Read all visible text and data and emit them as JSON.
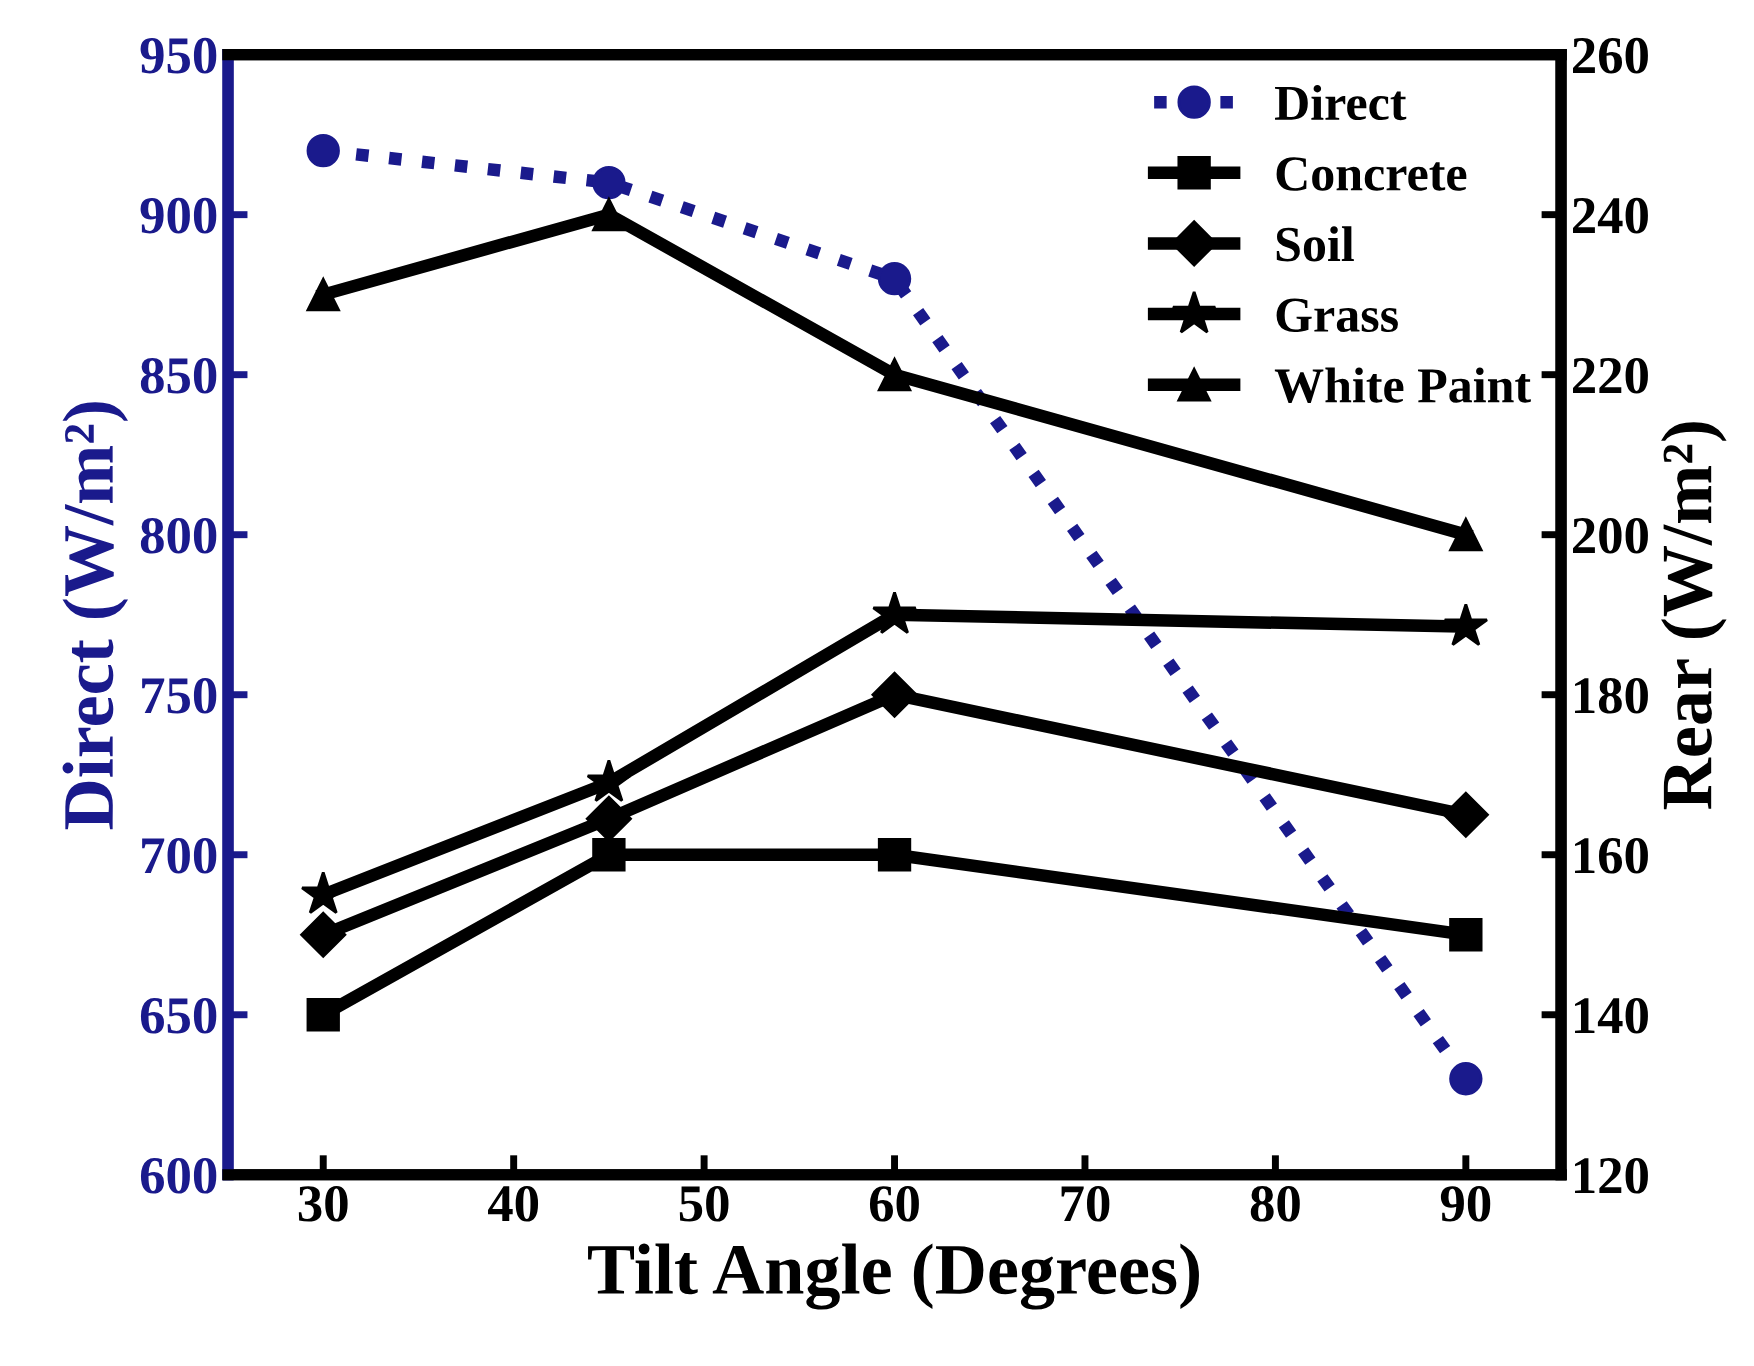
{
  "chart_data": {
    "type": "line",
    "xlabel": "Tilt Angle (Degrees)",
    "ylabel": "Direct (W/m²)",
    "y2label": "Rear (W/m²)",
    "x": [
      30,
      45,
      60,
      90
    ],
    "series": [
      {
        "name": "Direct",
        "color": "#1a1a8c",
        "values": [
          920,
          910,
          880,
          630
        ],
        "marker": "circle",
        "line_style": "dotted"
      },
      {
        "name": "Concrete",
        "color": "#000000",
        "values": [
          140,
          160,
          160,
          150
        ],
        "marker": "square",
        "line_style": "solid",
        "axis": "y2"
      },
      {
        "name": "Soil",
        "color": "#000000",
        "values": [
          150,
          164.5,
          180,
          165
        ],
        "marker": "diamond",
        "line_style": "solid",
        "axis": "y2"
      },
      {
        "name": "Grass",
        "color": "#000000",
        "values": [
          155,
          169,
          190,
          188.5
        ],
        "marker": "star",
        "line_style": "solid",
        "axis": "y2"
      },
      {
        "name": "White Paint",
        "color": "#000000",
        "values": [
          230,
          240,
          220,
          200
        ],
        "marker": "triangle",
        "line_style": "solid",
        "axis": "y2"
      }
    ],
    "xlim": [
      25,
      95
    ],
    "xticks": [
      30,
      40,
      50,
      60,
      70,
      80,
      90
    ],
    "ylim": [
      600,
      950
    ],
    "yticks": [
      600,
      650,
      700,
      750,
      800,
      850,
      900,
      950
    ],
    "y2lim": [
      120,
      260
    ],
    "y2ticks": [
      120,
      140,
      160,
      180,
      200,
      220,
      240,
      260
    ],
    "grid": false,
    "legend": "top right"
  }
}
